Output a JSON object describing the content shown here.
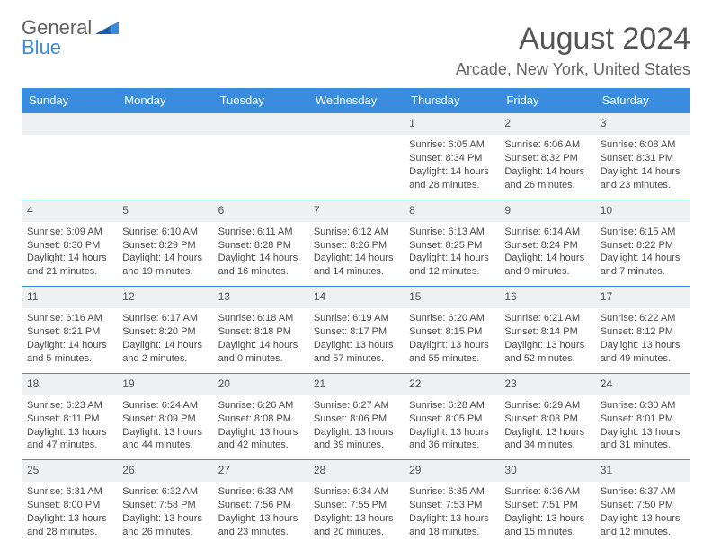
{
  "branding": {
    "word1": "General",
    "word2": "Blue"
  },
  "header": {
    "title": "August 2024",
    "location": "Arcade, New York, United States"
  },
  "colors": {
    "accent": "#3a8dde",
    "numrow_bg": "#eef0f1",
    "text": "#484848"
  },
  "dayNames": [
    "Sunday",
    "Monday",
    "Tuesday",
    "Wednesday",
    "Thursday",
    "Friday",
    "Saturday"
  ],
  "weeks": [
    [
      null,
      null,
      null,
      null,
      {
        "n": "1",
        "sr": "Sunrise: 6:05 AM",
        "ss": "Sunset: 8:34 PM",
        "d1": "Daylight: 14 hours",
        "d2": "and 28 minutes."
      },
      {
        "n": "2",
        "sr": "Sunrise: 6:06 AM",
        "ss": "Sunset: 8:32 PM",
        "d1": "Daylight: 14 hours",
        "d2": "and 26 minutes."
      },
      {
        "n": "3",
        "sr": "Sunrise: 6:08 AM",
        "ss": "Sunset: 8:31 PM",
        "d1": "Daylight: 14 hours",
        "d2": "and 23 minutes."
      }
    ],
    [
      {
        "n": "4",
        "sr": "Sunrise: 6:09 AM",
        "ss": "Sunset: 8:30 PM",
        "d1": "Daylight: 14 hours",
        "d2": "and 21 minutes."
      },
      {
        "n": "5",
        "sr": "Sunrise: 6:10 AM",
        "ss": "Sunset: 8:29 PM",
        "d1": "Daylight: 14 hours",
        "d2": "and 19 minutes."
      },
      {
        "n": "6",
        "sr": "Sunrise: 6:11 AM",
        "ss": "Sunset: 8:28 PM",
        "d1": "Daylight: 14 hours",
        "d2": "and 16 minutes."
      },
      {
        "n": "7",
        "sr": "Sunrise: 6:12 AM",
        "ss": "Sunset: 8:26 PM",
        "d1": "Daylight: 14 hours",
        "d2": "and 14 minutes."
      },
      {
        "n": "8",
        "sr": "Sunrise: 6:13 AM",
        "ss": "Sunset: 8:25 PM",
        "d1": "Daylight: 14 hours",
        "d2": "and 12 minutes."
      },
      {
        "n": "9",
        "sr": "Sunrise: 6:14 AM",
        "ss": "Sunset: 8:24 PM",
        "d1": "Daylight: 14 hours",
        "d2": "and 9 minutes."
      },
      {
        "n": "10",
        "sr": "Sunrise: 6:15 AM",
        "ss": "Sunset: 8:22 PM",
        "d1": "Daylight: 14 hours",
        "d2": "and 7 minutes."
      }
    ],
    [
      {
        "n": "11",
        "sr": "Sunrise: 6:16 AM",
        "ss": "Sunset: 8:21 PM",
        "d1": "Daylight: 14 hours",
        "d2": "and 5 minutes."
      },
      {
        "n": "12",
        "sr": "Sunrise: 6:17 AM",
        "ss": "Sunset: 8:20 PM",
        "d1": "Daylight: 14 hours",
        "d2": "and 2 minutes."
      },
      {
        "n": "13",
        "sr": "Sunrise: 6:18 AM",
        "ss": "Sunset: 8:18 PM",
        "d1": "Daylight: 14 hours",
        "d2": "and 0 minutes."
      },
      {
        "n": "14",
        "sr": "Sunrise: 6:19 AM",
        "ss": "Sunset: 8:17 PM",
        "d1": "Daylight: 13 hours",
        "d2": "and 57 minutes."
      },
      {
        "n": "15",
        "sr": "Sunrise: 6:20 AM",
        "ss": "Sunset: 8:15 PM",
        "d1": "Daylight: 13 hours",
        "d2": "and 55 minutes."
      },
      {
        "n": "16",
        "sr": "Sunrise: 6:21 AM",
        "ss": "Sunset: 8:14 PM",
        "d1": "Daylight: 13 hours",
        "d2": "and 52 minutes."
      },
      {
        "n": "17",
        "sr": "Sunrise: 6:22 AM",
        "ss": "Sunset: 8:12 PM",
        "d1": "Daylight: 13 hours",
        "d2": "and 49 minutes."
      }
    ],
    [
      {
        "n": "18",
        "sr": "Sunrise: 6:23 AM",
        "ss": "Sunset: 8:11 PM",
        "d1": "Daylight: 13 hours",
        "d2": "and 47 minutes."
      },
      {
        "n": "19",
        "sr": "Sunrise: 6:24 AM",
        "ss": "Sunset: 8:09 PM",
        "d1": "Daylight: 13 hours",
        "d2": "and 44 minutes."
      },
      {
        "n": "20",
        "sr": "Sunrise: 6:26 AM",
        "ss": "Sunset: 8:08 PM",
        "d1": "Daylight: 13 hours",
        "d2": "and 42 minutes."
      },
      {
        "n": "21",
        "sr": "Sunrise: 6:27 AM",
        "ss": "Sunset: 8:06 PM",
        "d1": "Daylight: 13 hours",
        "d2": "and 39 minutes."
      },
      {
        "n": "22",
        "sr": "Sunrise: 6:28 AM",
        "ss": "Sunset: 8:05 PM",
        "d1": "Daylight: 13 hours",
        "d2": "and 36 minutes."
      },
      {
        "n": "23",
        "sr": "Sunrise: 6:29 AM",
        "ss": "Sunset: 8:03 PM",
        "d1": "Daylight: 13 hours",
        "d2": "and 34 minutes."
      },
      {
        "n": "24",
        "sr": "Sunrise: 6:30 AM",
        "ss": "Sunset: 8:01 PM",
        "d1": "Daylight: 13 hours",
        "d2": "and 31 minutes."
      }
    ],
    [
      {
        "n": "25",
        "sr": "Sunrise: 6:31 AM",
        "ss": "Sunset: 8:00 PM",
        "d1": "Daylight: 13 hours",
        "d2": "and 28 minutes."
      },
      {
        "n": "26",
        "sr": "Sunrise: 6:32 AM",
        "ss": "Sunset: 7:58 PM",
        "d1": "Daylight: 13 hours",
        "d2": "and 26 minutes."
      },
      {
        "n": "27",
        "sr": "Sunrise: 6:33 AM",
        "ss": "Sunset: 7:56 PM",
        "d1": "Daylight: 13 hours",
        "d2": "and 23 minutes."
      },
      {
        "n": "28",
        "sr": "Sunrise: 6:34 AM",
        "ss": "Sunset: 7:55 PM",
        "d1": "Daylight: 13 hours",
        "d2": "and 20 minutes."
      },
      {
        "n": "29",
        "sr": "Sunrise: 6:35 AM",
        "ss": "Sunset: 7:53 PM",
        "d1": "Daylight: 13 hours",
        "d2": "and 18 minutes."
      },
      {
        "n": "30",
        "sr": "Sunrise: 6:36 AM",
        "ss": "Sunset: 7:51 PM",
        "d1": "Daylight: 13 hours",
        "d2": "and 15 minutes."
      },
      {
        "n": "31",
        "sr": "Sunrise: 6:37 AM",
        "ss": "Sunset: 7:50 PM",
        "d1": "Daylight: 13 hours",
        "d2": "and 12 minutes."
      }
    ]
  ]
}
